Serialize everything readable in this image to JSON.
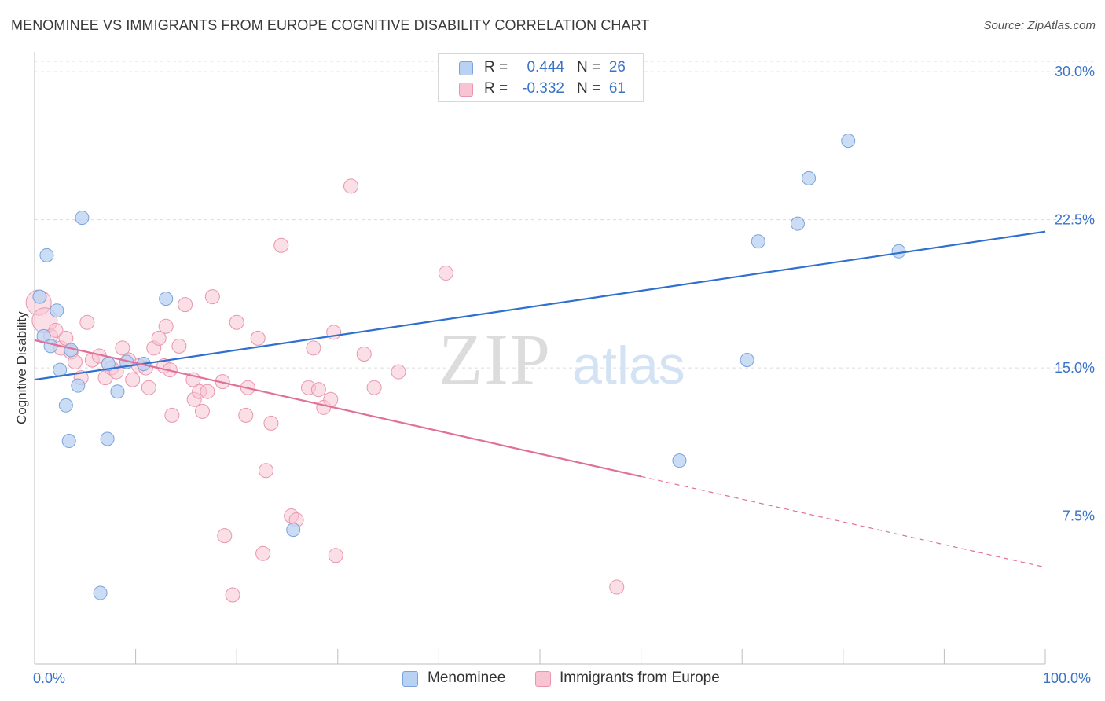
{
  "header": {
    "title": "MENOMINEE VS IMMIGRANTS FROM EUROPE COGNITIVE DISABILITY CORRELATION CHART",
    "source": "Source: ZipAtlas.com"
  },
  "watermark": {
    "zip": "ZIP",
    "atlas": "atlas"
  },
  "legend_top": {
    "rows": [
      {
        "r_label": "R =",
        "r_value": "0.444",
        "n_label": "N =",
        "n_value": "26"
      },
      {
        "r_label": "R =",
        "r_value": "-0.332",
        "n_label": "N =",
        "n_value": "61"
      }
    ]
  },
  "legend_bottom": {
    "items": [
      "Menominee",
      "Immigrants from Europe"
    ]
  },
  "colors": {
    "blue_fill": "#b9d1f2",
    "blue_stroke": "#7aa3dc",
    "blue_line": "#2f6fd0",
    "pink_fill": "#f8c4d3",
    "pink_stroke": "#e995ad",
    "pink_line": "#e0709a",
    "tick_text": "#3a74c8",
    "grid": "#dcdcdc"
  },
  "chart_data": {
    "type": "scatter",
    "title": "MENOMINEE VS IMMIGRANTS FROM EUROPE COGNITIVE DISABILITY CORRELATION CHART",
    "xlabel": "",
    "ylabel": "Cognitive Disability",
    "xlim": [
      0,
      100
    ],
    "ylim": [
      0,
      31
    ],
    "x_tick_labels": [
      "0.0%",
      "100.0%"
    ],
    "y_ticks": [
      7.5,
      15.0,
      22.5,
      30.0
    ],
    "y_tick_labels": [
      "7.5%",
      "15.0%",
      "22.5%",
      "30.0%"
    ],
    "grid": "horizontal dashed",
    "legend_placement": "bottom-center",
    "series": [
      {
        "name": "Menominee",
        "points": [
          [
            0.5,
            18.6
          ],
          [
            1.2,
            20.7
          ],
          [
            2.2,
            17.9
          ],
          [
            0.9,
            16.6
          ],
          [
            1.6,
            16.1
          ],
          [
            3.6,
            15.9
          ],
          [
            2.5,
            14.9
          ],
          [
            4.3,
            14.1
          ],
          [
            3.1,
            13.1
          ],
          [
            3.4,
            11.3
          ],
          [
            4.7,
            22.6
          ],
          [
            7.3,
            15.2
          ],
          [
            9.1,
            15.3
          ],
          [
            8.2,
            13.8
          ],
          [
            10.8,
            15.2
          ],
          [
            7.2,
            11.4
          ],
          [
            13.0,
            18.5
          ],
          [
            25.6,
            6.8
          ],
          [
            6.5,
            3.6
          ],
          [
            63.8,
            10.3
          ],
          [
            70.5,
            15.4
          ],
          [
            71.6,
            21.4
          ],
          [
            75.5,
            22.3
          ],
          [
            76.6,
            24.6
          ],
          [
            80.5,
            26.5
          ],
          [
            85.5,
            20.9
          ]
        ],
        "trend": {
          "x0": 0,
          "y0": 14.4,
          "x1": 100,
          "y1": 21.9
        }
      },
      {
        "name": "Immigrants from Europe",
        "points": [
          [
            0.4,
            18.3
          ],
          [
            1.0,
            17.4
          ],
          [
            1.6,
            16.6
          ],
          [
            2.1,
            16.9
          ],
          [
            2.6,
            16.0
          ],
          [
            3.1,
            16.5
          ],
          [
            3.6,
            15.8
          ],
          [
            4.0,
            15.3
          ],
          [
            4.6,
            14.5
          ],
          [
            5.2,
            17.3
          ],
          [
            5.7,
            15.4
          ],
          [
            6.4,
            15.6
          ],
          [
            7.0,
            14.5
          ],
          [
            7.6,
            15.0
          ],
          [
            8.1,
            14.8
          ],
          [
            8.7,
            16.0
          ],
          [
            9.3,
            15.4
          ],
          [
            9.7,
            14.4
          ],
          [
            10.3,
            15.1
          ],
          [
            11.0,
            15.0
          ],
          [
            11.3,
            14.0
          ],
          [
            11.8,
            16.0
          ],
          [
            12.3,
            16.5
          ],
          [
            12.8,
            15.1
          ],
          [
            13.0,
            17.1
          ],
          [
            13.4,
            14.9
          ],
          [
            13.6,
            12.6
          ],
          [
            14.3,
            16.1
          ],
          [
            14.9,
            18.2
          ],
          [
            15.7,
            14.4
          ],
          [
            15.8,
            13.4
          ],
          [
            16.3,
            13.8
          ],
          [
            16.6,
            12.8
          ],
          [
            17.1,
            13.8
          ],
          [
            17.6,
            18.6
          ],
          [
            18.6,
            14.3
          ],
          [
            18.8,
            6.5
          ],
          [
            19.6,
            3.5
          ],
          [
            20.0,
            17.3
          ],
          [
            20.9,
            12.6
          ],
          [
            21.1,
            14.0
          ],
          [
            22.1,
            16.5
          ],
          [
            22.6,
            5.6
          ],
          [
            22.9,
            9.8
          ],
          [
            23.4,
            12.2
          ],
          [
            24.4,
            21.2
          ],
          [
            25.4,
            7.5
          ],
          [
            25.9,
            7.3
          ],
          [
            27.1,
            14.0
          ],
          [
            27.6,
            16.0
          ],
          [
            28.1,
            13.9
          ],
          [
            28.6,
            13.0
          ],
          [
            29.3,
            13.4
          ],
          [
            29.6,
            16.8
          ],
          [
            29.8,
            5.5
          ],
          [
            31.3,
            24.2
          ],
          [
            32.6,
            15.7
          ],
          [
            33.6,
            14.0
          ],
          [
            36.0,
            14.8
          ],
          [
            40.7,
            19.8
          ],
          [
            57.6,
            3.9
          ]
        ],
        "trend": {
          "x0": 0,
          "y0": 16.4,
          "x1": 60,
          "y1": 9.5,
          "dash_to_x": 100,
          "dash_to_y": 4.9
        }
      }
    ]
  }
}
